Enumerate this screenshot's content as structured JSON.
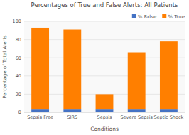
{
  "chart_data": {
    "type": "bar",
    "stacked": true,
    "title": "Percentages of True and False Alerts: All Patients",
    "xlabel": "Conditions",
    "ylabel": "Percentage of Total Alerts",
    "categories": [
      "Sepsis Free",
      "SIRS",
      "Sepsis",
      "Severe Sepsis",
      "Septic Shock"
    ],
    "series": [
      {
        "name": "% False",
        "color": "#4472c4",
        "values": [
          3.0,
          3.0,
          3.0,
          3.0,
          3.0
        ]
      },
      {
        "name": "% True",
        "color": "#ff7f00",
        "values": [
          90,
          88,
          17,
          63,
          75
        ]
      }
    ],
    "ylim": [
      0,
      100
    ],
    "yticks": [
      0,
      20,
      40,
      60,
      80,
      100
    ],
    "grid": true,
    "legend": "upper right"
  }
}
